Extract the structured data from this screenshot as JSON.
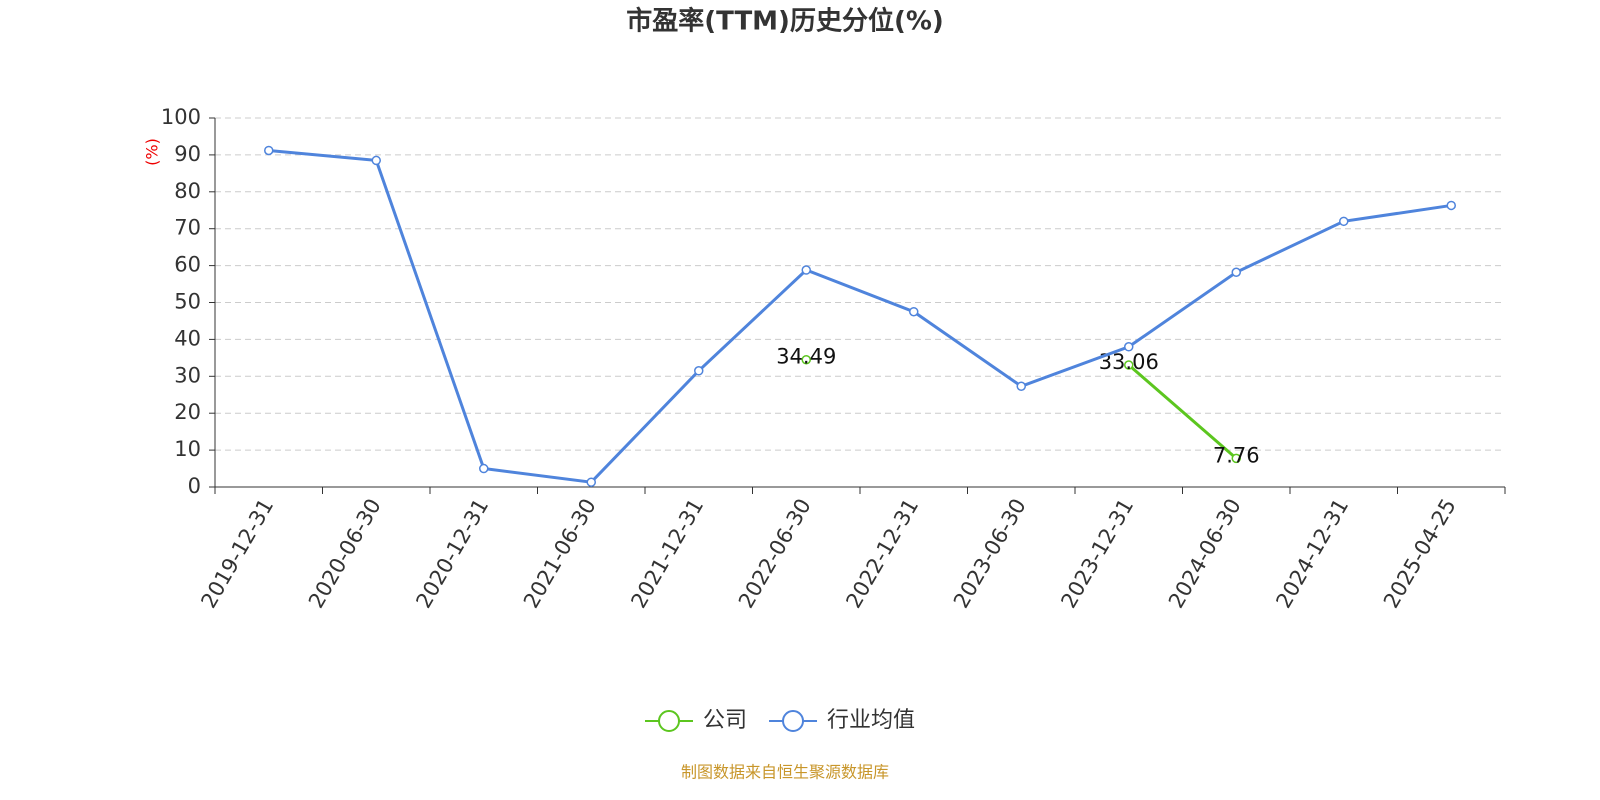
{
  "chart_data": {
    "type": "line",
    "title": "市盈率(TTM)历史分位(%)",
    "y_label": "(%)",
    "categories": [
      "2019-12-31",
      "2020-06-30",
      "2020-12-31",
      "2021-06-30",
      "2021-12-31",
      "2022-06-30",
      "2022-12-31",
      "2023-06-30",
      "2023-12-31",
      "2024-06-30",
      "2024-12-31",
      "2025-04-25"
    ],
    "series": [
      {
        "name": "公司",
        "color": "#5cc61f",
        "data_labels": true,
        "values": [
          null,
          null,
          null,
          null,
          null,
          34.49,
          null,
          null,
          33.06,
          7.76,
          null,
          null
        ]
      },
      {
        "name": "行业均值",
        "color": "#4f84dc",
        "data_labels": false,
        "values": [
          91.2,
          88.5,
          5.0,
          1.3,
          31.5,
          58.8,
          47.5,
          27.3,
          38.0,
          58.2,
          72.0,
          76.3
        ]
      }
    ],
    "ylim": [
      0,
      100
    ],
    "yticks": [
      0,
      10,
      20,
      30,
      40,
      50,
      60,
      70,
      80,
      90,
      100
    ],
    "grid": true,
    "legend": "bottom",
    "source": "制图数据来自恒生聚源数据库"
  }
}
